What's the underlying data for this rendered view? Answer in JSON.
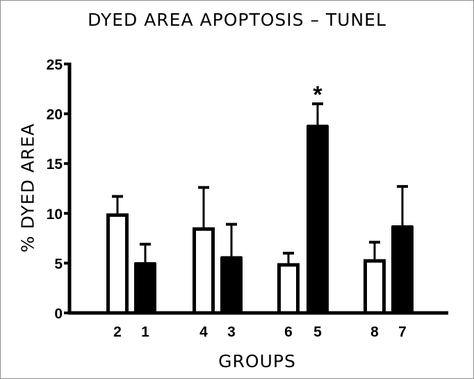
{
  "chart_data": {
    "type": "bar",
    "title": "DYED AREA APOPTOSIS – TUNEL",
    "xlabel": "GROUPS",
    "ylabel": "% DYED AREA",
    "ylim": [
      0,
      25
    ],
    "yticks": [
      0,
      5,
      10,
      15,
      20,
      25
    ],
    "grid": false,
    "legend": null,
    "categories": [
      "2",
      "1",
      "4",
      "3",
      "6",
      "5",
      "8",
      "7"
    ],
    "values": [
      10.0,
      5.1,
      8.6,
      5.7,
      5.0,
      18.9,
      5.4,
      8.8
    ],
    "error_upper": [
      11.7,
      6.9,
      12.6,
      8.9,
      6.0,
      21.0,
      7.1,
      12.7
    ],
    "fill": [
      "white",
      "black",
      "white",
      "black",
      "white",
      "black",
      "white",
      "black"
    ],
    "annotations": [
      {
        "category": "5",
        "text": "*"
      }
    ],
    "colors": {
      "open_bar": "#ffffff",
      "filled_bar": "#000000",
      "axis": "#000000",
      "frame": "#8c8c8c"
    }
  }
}
